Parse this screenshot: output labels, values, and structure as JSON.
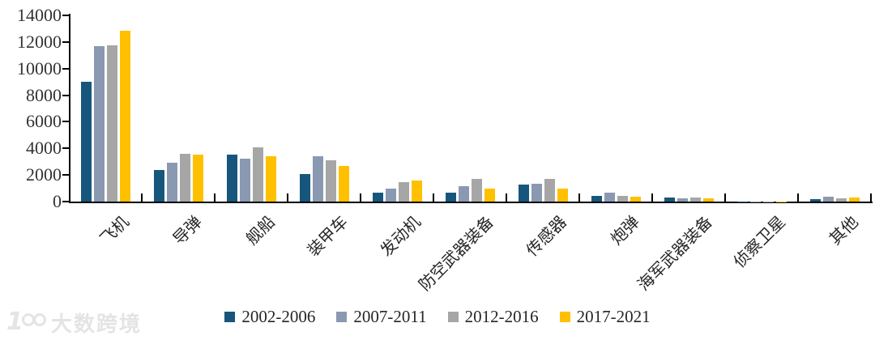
{
  "chart_data": {
    "type": "bar",
    "title": "",
    "xlabel": "",
    "ylabel": "",
    "categories": [
      "飞机",
      "导弹",
      "舰船",
      "装甲车",
      "发动机",
      "防空武器装备",
      "传感器",
      "炮弹",
      "海军武器装备",
      "侦察卫星",
      "其他"
    ],
    "series": [
      {
        "name": "2002-2006",
        "color": "#17567C",
        "values": [
          9000,
          2400,
          3550,
          2100,
          700,
          700,
          1250,
          450,
          300,
          30,
          200
        ]
      },
      {
        "name": "2007-2011",
        "color": "#8A99B2",
        "values": [
          11700,
          2900,
          3250,
          3400,
          1000,
          1150,
          1350,
          650,
          230,
          30,
          350
        ]
      },
      {
        "name": "2012-2016",
        "color": "#A6A6A6",
        "values": [
          11750,
          3600,
          4050,
          3100,
          1450,
          1700,
          1700,
          400,
          280,
          30,
          250
        ]
      },
      {
        "name": "2017-2021",
        "color": "#FFC000",
        "values": [
          12850,
          3550,
          3400,
          2700,
          1600,
          950,
          1000,
          350,
          230,
          30,
          300
        ]
      }
    ],
    "ylim": [
      0,
      14000
    ],
    "ytick_step": 2000,
    "yticks": [
      0,
      2000,
      4000,
      6000,
      8000,
      10000,
      12000,
      14000
    ],
    "grid": false,
    "legend_position": "bottom"
  },
  "watermark": {
    "brand_mark": "100",
    "brand_name": "大数跨境"
  }
}
